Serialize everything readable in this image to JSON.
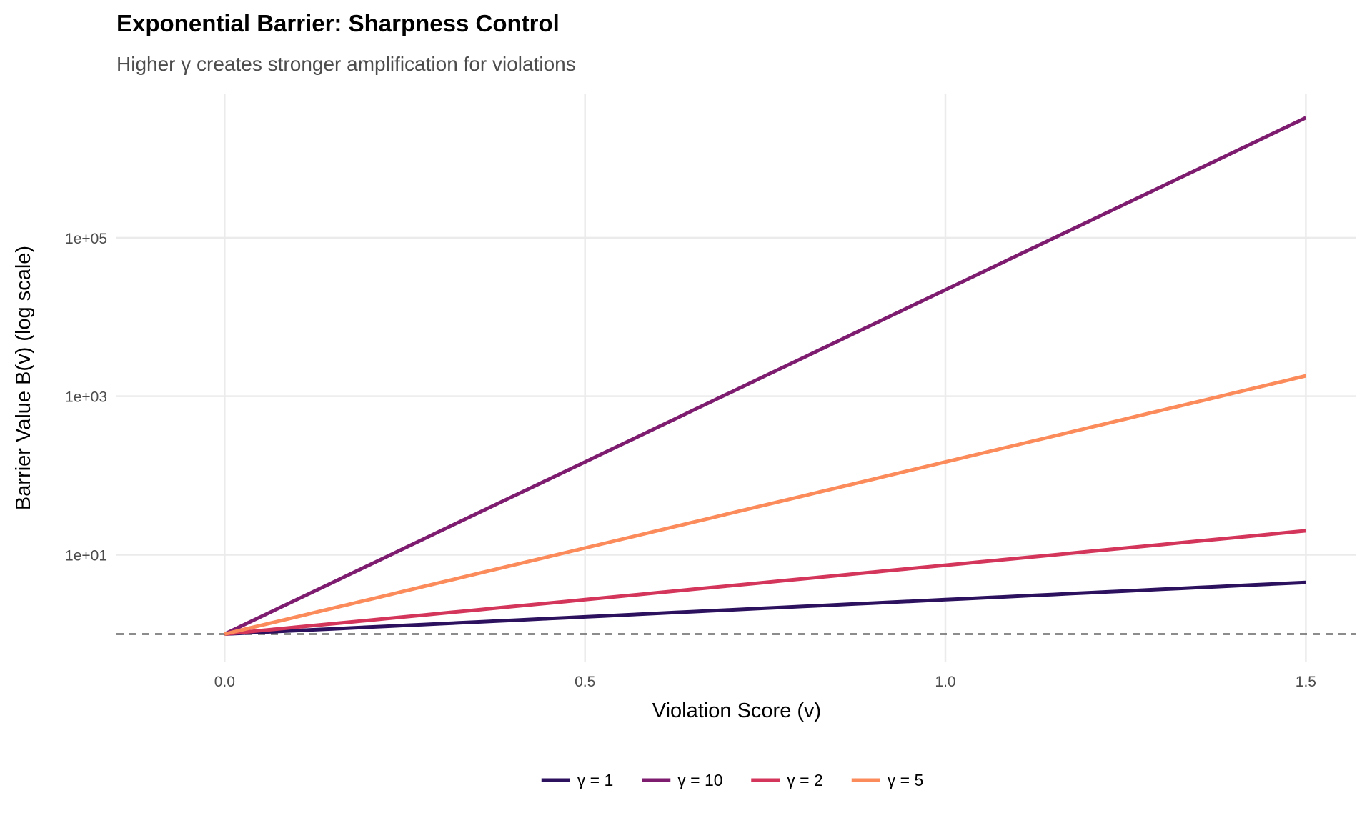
{
  "chart_data": {
    "type": "line",
    "title": "Exponential Barrier: Sharpness Control",
    "subtitle": "Higher γ creates stronger amplification for violations",
    "xlabel": "Violation Score (v)",
    "ylabel": "Barrier Value B(v) (log scale)",
    "x_scale": "linear",
    "y_scale": "log10",
    "xlim": [
      -0.15,
      1.57
    ],
    "ylim": [
      0.44,
      6600000
    ],
    "x_ticks": [
      0,
      0.5,
      1,
      1.5
    ],
    "x_tick_labels": [
      "0.0",
      "0.5",
      "1.0",
      "1.5"
    ],
    "y_ticks": [
      10,
      1000,
      100000
    ],
    "y_tick_labels": [
      "1e+01",
      "1e+03",
      "1e+05"
    ],
    "grid": true,
    "reference_line": {
      "y": 1,
      "style": "dashed",
      "color": "#666666"
    },
    "legend_position": "bottom",
    "x": [
      0,
      0.25,
      0.5,
      0.75,
      1.0,
      1.25,
      1.5
    ],
    "series": [
      {
        "name": "γ = 1",
        "gamma": 1,
        "color": "#2c115f",
        "values": [
          1,
          1.284,
          1.649,
          2.117,
          2.718,
          3.49,
          4.482
        ]
      },
      {
        "name": "γ = 10",
        "gamma": 10,
        "color": "#7e1c70",
        "values": [
          1,
          12.18,
          148.4,
          1808,
          22026,
          268337,
          3269017
        ]
      },
      {
        "name": "γ = 2",
        "gamma": 2,
        "color": "#d3365a",
        "values": [
          1,
          1.649,
          2.718,
          4.482,
          7.389,
          12.18,
          20.09
        ]
      },
      {
        "name": "γ = 5",
        "gamma": 5,
        "color": "#fb8b5b",
        "values": [
          1,
          3.49,
          12.18,
          42.52,
          148.4,
          518.0,
          1808
        ]
      }
    ]
  }
}
